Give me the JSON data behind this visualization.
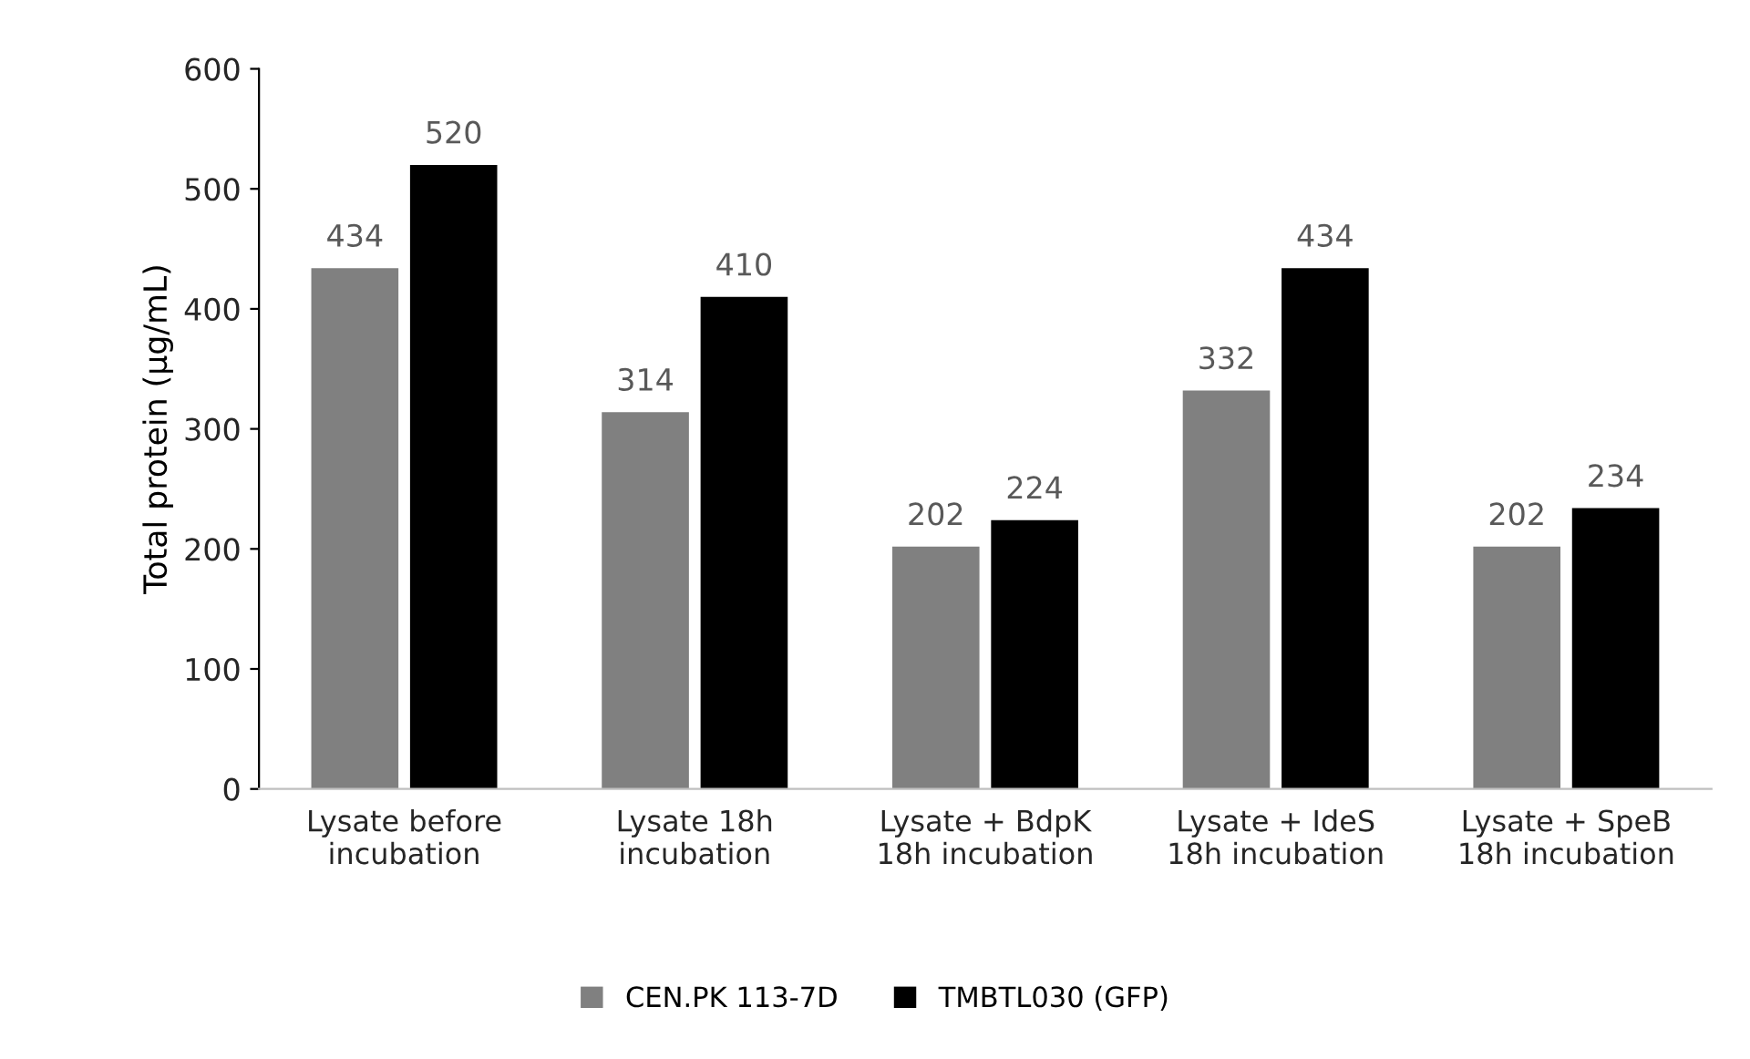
{
  "chart_data": {
    "type": "bar",
    "categories": [
      "Lysate before\nincubation",
      "Lysate 18h\nincubation",
      "Lysate + BdpK\n18h incubation",
      "Lysate + IdeS\n18h incubation",
      "Lysate + SpeB\n18h incubation"
    ],
    "series": [
      {
        "name": "CEN.PK 113-7D",
        "color": "#808080",
        "values": [
          434,
          314,
          202,
          332,
          202
        ]
      },
      {
        "name": "TMBTL030 (GFP)",
        "color": "#000000",
        "values": [
          520,
          410,
          224,
          434,
          234
        ]
      }
    ],
    "ylabel": "Total protein (µg/mL)",
    "ylim": [
      0,
      600
    ],
    "yticks": [
      0,
      100,
      200,
      300,
      400,
      500,
      600
    ],
    "data_labels": true,
    "grid": false,
    "legend": "bottom"
  }
}
